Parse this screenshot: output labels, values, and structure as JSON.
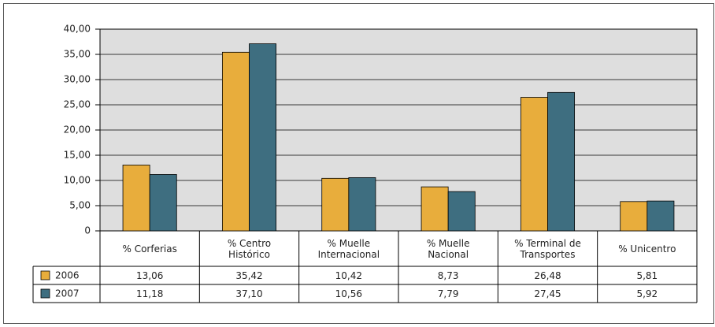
{
  "chart_data": {
    "type": "bar",
    "categories": [
      "% Corferias",
      "% Centro Histórico",
      "% Muelle Internacional",
      "% Muelle Nacional",
      "% Terminal de Transportes",
      "% Unicentro"
    ],
    "series": [
      {
        "name": "2006",
        "color": "#e8ad3c",
        "values": [
          13.06,
          35.42,
          10.42,
          8.73,
          26.48,
          5.81
        ],
        "value_labels": [
          "13,06",
          "35,42",
          "10,42",
          "8,73",
          "26,48",
          "5,81"
        ]
      },
      {
        "name": "2007",
        "color": "#3e6e80",
        "values": [
          11.18,
          37.1,
          10.56,
          7.79,
          27.45,
          5.92
        ],
        "value_labels": [
          "11,18",
          "37,10",
          "10,56",
          "7,79",
          "27,45",
          "5,92"
        ]
      }
    ],
    "ylim": [
      0,
      40
    ],
    "yticks": [
      0,
      {
        "value": 5,
        "label": "5,00"
      },
      {
        "value": 10,
        "label": "10,00"
      },
      {
        "value": 15,
        "label": "15,00"
      },
      {
        "value": 20,
        "label": "20,00"
      },
      {
        "value": 25,
        "label": "25,00"
      },
      {
        "value": 30,
        "label": "30,00"
      },
      {
        "value": 35,
        "label": "35,00"
      },
      {
        "value": 40,
        "label": "40,00"
      }
    ],
    "grid": true
  }
}
